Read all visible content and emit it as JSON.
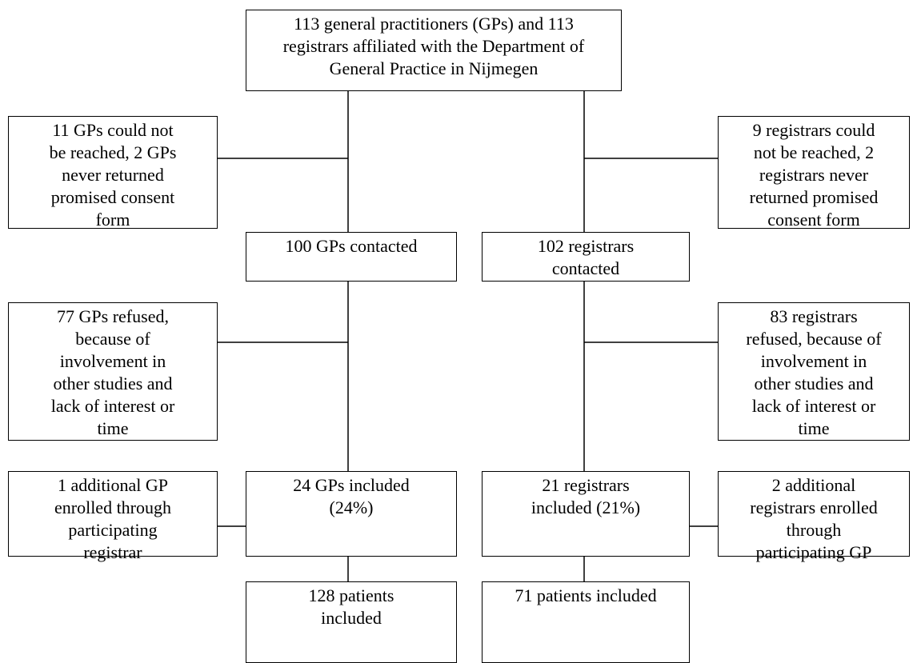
{
  "nodes": [
    {
      "lines": [
        "113 general practitioners (GPs) and 113",
        "registrars affiliated with the Department of",
        "General Practice in Nijmegen"
      ]
    },
    {
      "lines": [
        "11 GPs could not",
        "be reached, 2 GPs",
        "never returned",
        "promised consent",
        "form"
      ]
    },
    {
      "lines": [
        "9 registrars could",
        "not be reached, 2",
        "registrars never",
        "returned promised",
        "consent form"
      ]
    },
    {
      "lines": [
        "100 GPs contacted"
      ]
    },
    {
      "lines": [
        "102 registrars",
        "contacted"
      ]
    },
    {
      "lines": [
        "77 GPs refused,",
        "because of",
        "involvement in",
        "other studies and",
        "lack of interest or",
        "time"
      ]
    },
    {
      "lines": [
        "83 registrars",
        "refused, because of",
        "involvement in",
        "other studies and",
        "lack of interest or",
        "time"
      ]
    },
    {
      "lines": [
        "1 additional GP",
        "enrolled through",
        "participating",
        "registrar"
      ]
    },
    {
      "lines": [
        "24 GPs included",
        "(24%)"
      ]
    },
    {
      "lines": [
        "21 registrars",
        "included (21%)"
      ]
    },
    {
      "lines": [
        "2 additional",
        "registrars enrolled",
        "through",
        "participating GP"
      ]
    },
    {
      "lines": [
        "128 patients",
        "included"
      ]
    },
    {
      "lines": [
        "71 patients included"
      ]
    }
  ]
}
